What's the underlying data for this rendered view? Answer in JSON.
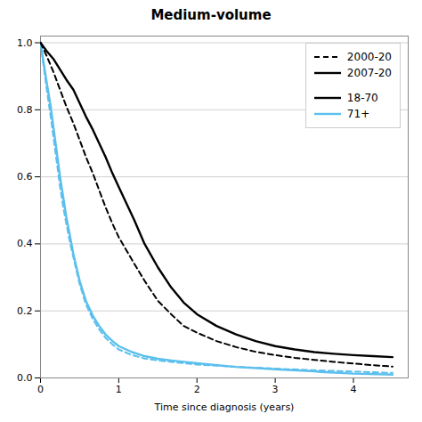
{
  "chart_data": {
    "type": "line",
    "title": "Medium-volume",
    "x_label": "Time since diagnosis (years)",
    "xlim": [
      0,
      4.7
    ],
    "ylim": [
      0.0,
      1.02
    ],
    "xticks": [
      0,
      1,
      2,
      3,
      4
    ],
    "yticks": [
      {
        "value": 0.0,
        "label": "0.0"
      },
      0.2,
      0.4,
      0.6,
      0.8,
      {
        "value": 1.0,
        "label": "1.0"
      }
    ],
    "grid": "y",
    "legend": "upper right",
    "legend_groups": [
      [
        {
          "label": "2000-20",
          "color": "#000000",
          "line_style": "dashed"
        },
        {
          "label": "2007-20",
          "color": "#000000",
          "line_style": "solid"
        }
      ],
      [
        {
          "label": "18-70",
          "color": "#000000",
          "line_style": "solid"
        },
        {
          "label": "71+",
          "color": "#5bbfed",
          "line_style": "solid"
        }
      ]
    ],
    "series": [
      {
        "color": "#5bbfed",
        "line_style": "solid",
        "x": [
          0.0,
          0.04,
          0.08,
          0.13,
          0.17,
          0.21,
          0.25,
          0.29,
          0.33,
          0.38,
          0.42,
          0.46,
          0.5,
          0.58,
          0.67,
          0.75,
          0.83,
          0.92,
          1.0,
          1.17,
          1.33,
          1.5,
          1.67,
          1.83,
          2.0,
          2.17,
          2.5,
          3.0,
          3.5,
          3.58,
          4.0,
          4.5
        ],
        "values": [
          1.0,
          0.94,
          0.88,
          0.81,
          0.74,
          0.67,
          0.6,
          0.54,
          0.48,
          0.42,
          0.37,
          0.33,
          0.29,
          0.23,
          0.185,
          0.155,
          0.13,
          0.11,
          0.095,
          0.077,
          0.065,
          0.057,
          0.052,
          0.048,
          0.044,
          0.04,
          0.033,
          0.026,
          0.02,
          0.018,
          0.013,
          0.01
        ]
      },
      {
        "color": "#5bbfed",
        "line_style": "dashed",
        "x": [
          0.0,
          0.04,
          0.08,
          0.13,
          0.17,
          0.21,
          0.25,
          0.29,
          0.33,
          0.38,
          0.42,
          0.46,
          0.5,
          0.58,
          0.67,
          0.75,
          0.83,
          0.92,
          1.0,
          1.17,
          1.33,
          1.5,
          1.67,
          1.83,
          2.0,
          2.5,
          3.0,
          3.5,
          4.0,
          4.5
        ],
        "values": [
          1.0,
          0.93,
          0.86,
          0.78,
          0.71,
          0.64,
          0.57,
          0.51,
          0.46,
          0.4,
          0.36,
          0.32,
          0.28,
          0.22,
          0.175,
          0.145,
          0.12,
          0.1,
          0.085,
          0.068,
          0.058,
          0.052,
          0.048,
          0.044,
          0.04,
          0.033,
          0.028,
          0.023,
          0.019,
          0.015
        ]
      },
      {
        "color": "#000000",
        "line_style": "dashed",
        "x": [
          0.0,
          0.08,
          0.17,
          0.25,
          0.33,
          0.42,
          0.5,
          0.58,
          0.67,
          0.75,
          0.83,
          0.92,
          1.0,
          1.1,
          1.2,
          1.33,
          1.5,
          1.67,
          1.83,
          2.0,
          2.25,
          2.5,
          2.75,
          3.0,
          3.25,
          3.5,
          3.75,
          4.0,
          4.25,
          4.5
        ],
        "values": [
          1.0,
          0.96,
          0.91,
          0.86,
          0.81,
          0.76,
          0.71,
          0.66,
          0.61,
          0.56,
          0.51,
          0.46,
          0.42,
          0.38,
          0.34,
          0.29,
          0.23,
          0.19,
          0.155,
          0.135,
          0.11,
          0.092,
          0.078,
          0.068,
          0.06,
          0.054,
          0.048,
          0.043,
          0.038,
          0.034
        ]
      },
      {
        "color": "#000000",
        "line_style": "solid",
        "x": [
          0.0,
          0.08,
          0.17,
          0.25,
          0.33,
          0.42,
          0.5,
          0.58,
          0.67,
          0.75,
          0.83,
          0.92,
          1.0,
          1.1,
          1.2,
          1.33,
          1.5,
          1.67,
          1.83,
          2.0,
          2.25,
          2.5,
          2.75,
          3.0,
          3.25,
          3.5,
          3.75,
          4.0,
          4.25,
          4.5
        ],
        "values": [
          1.0,
          0.975,
          0.95,
          0.92,
          0.89,
          0.86,
          0.82,
          0.78,
          0.74,
          0.7,
          0.66,
          0.61,
          0.57,
          0.52,
          0.47,
          0.4,
          0.33,
          0.27,
          0.225,
          0.19,
          0.155,
          0.13,
          0.11,
          0.095,
          0.085,
          0.077,
          0.072,
          0.068,
          0.065,
          0.062
        ]
      }
    ]
  }
}
